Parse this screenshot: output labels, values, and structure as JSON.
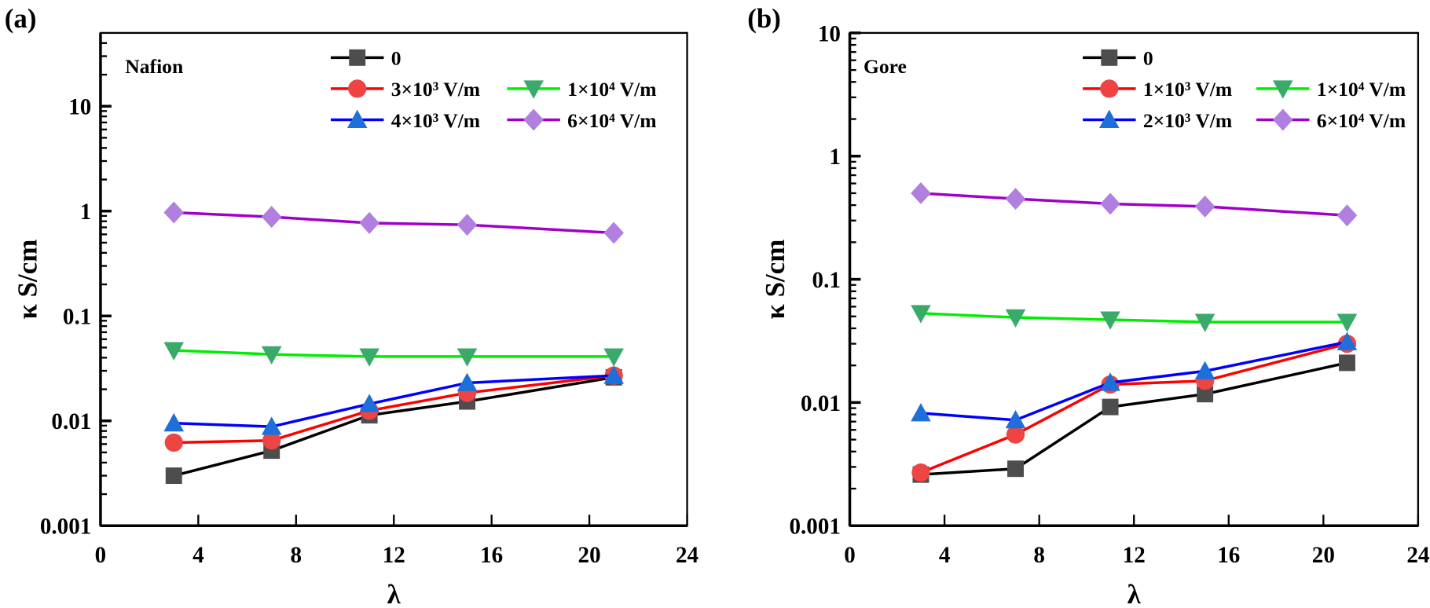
{
  "chart_data": [
    {
      "type": "line",
      "panel_label": "(a)",
      "annotation": "Nafion",
      "xlabel": "λ",
      "ylabel": "κ S/cm",
      "xlim": [
        0,
        24
      ],
      "ylim": [
        0.001,
        50
      ],
      "yscale": "log",
      "xticks": [
        "0",
        "4",
        "8",
        "12",
        "16",
        "20",
        "24"
      ],
      "yticks": [
        "0.001",
        "0.01",
        "0.1",
        "1",
        "10"
      ],
      "grid": false,
      "legend_placement": "top",
      "x": [
        3,
        7,
        11,
        15,
        21
      ],
      "series": [
        {
          "name": "0",
          "values": [
            0.003,
            0.0052,
            0.0113,
            0.0153,
            0.026
          ],
          "line_color": "#000000",
          "marker_color": "#4d4d4d",
          "marker": "square"
        },
        {
          "name": "3×10³ V/m",
          "values": [
            0.0062,
            0.0065,
            0.0125,
            0.0185,
            0.027
          ],
          "line_color": "#ff0000",
          "marker_color": "#ee4444",
          "marker": "circle"
        },
        {
          "name": "4×10³ V/m",
          "values": [
            0.0095,
            0.0088,
            0.0145,
            0.023,
            0.027
          ],
          "line_color": "#0000ff",
          "marker_color": "#1e6fd9",
          "marker": "triangle-up"
        },
        {
          "name": "1×10⁴ V/m",
          "values": [
            0.047,
            0.043,
            0.041,
            0.041,
            0.041
          ],
          "line_color": "#00ee00",
          "marker_color": "#3aaa6a",
          "marker": "triangle-down"
        },
        {
          "name": "6×10⁴ V/m",
          "values": [
            0.97,
            0.88,
            0.77,
            0.74,
            0.62
          ],
          "line_color": "#a000c8",
          "marker_color": "#b07fe0",
          "marker": "diamond"
        }
      ]
    },
    {
      "type": "line",
      "panel_label": "(b)",
      "annotation": "Gore",
      "xlabel": "λ",
      "ylabel": "κ S/cm",
      "xlim": [
        0,
        24
      ],
      "ylim": [
        0.001,
        10
      ],
      "yscale": "log",
      "xticks": [
        "0",
        "4",
        "8",
        "12",
        "16",
        "20",
        "24"
      ],
      "yticks": [
        "0.001",
        "0.01",
        "0.1",
        "1",
        "10"
      ],
      "grid": false,
      "legend_placement": "top",
      "x": [
        3,
        7,
        11,
        15,
        21
      ],
      "series": [
        {
          "name": "0",
          "values": [
            0.0026,
            0.0029,
            0.0092,
            0.0117,
            0.021
          ],
          "line_color": "#000000",
          "marker_color": "#4d4d4d",
          "marker": "square"
        },
        {
          "name": "1×10³ V/m",
          "values": [
            0.0027,
            0.0055,
            0.014,
            0.015,
            0.03
          ],
          "line_color": "#ff0000",
          "marker_color": "#ee4444",
          "marker": "circle"
        },
        {
          "name": "2×10³ V/m",
          "values": [
            0.0082,
            0.0072,
            0.0145,
            0.018,
            0.031
          ],
          "line_color": "#0000ff",
          "marker_color": "#1e6fd9",
          "marker": "triangle-up"
        },
        {
          "name": "1×10⁴ V/m",
          "values": [
            0.053,
            0.049,
            0.047,
            0.045,
            0.045
          ],
          "line_color": "#00ee00",
          "marker_color": "#3aaa6a",
          "marker": "triangle-down"
        },
        {
          "name": "6×10⁴ V/m",
          "values": [
            0.5,
            0.45,
            0.41,
            0.39,
            0.33
          ],
          "line_color": "#a000c8",
          "marker_color": "#b07fe0",
          "marker": "diamond"
        }
      ]
    }
  ]
}
